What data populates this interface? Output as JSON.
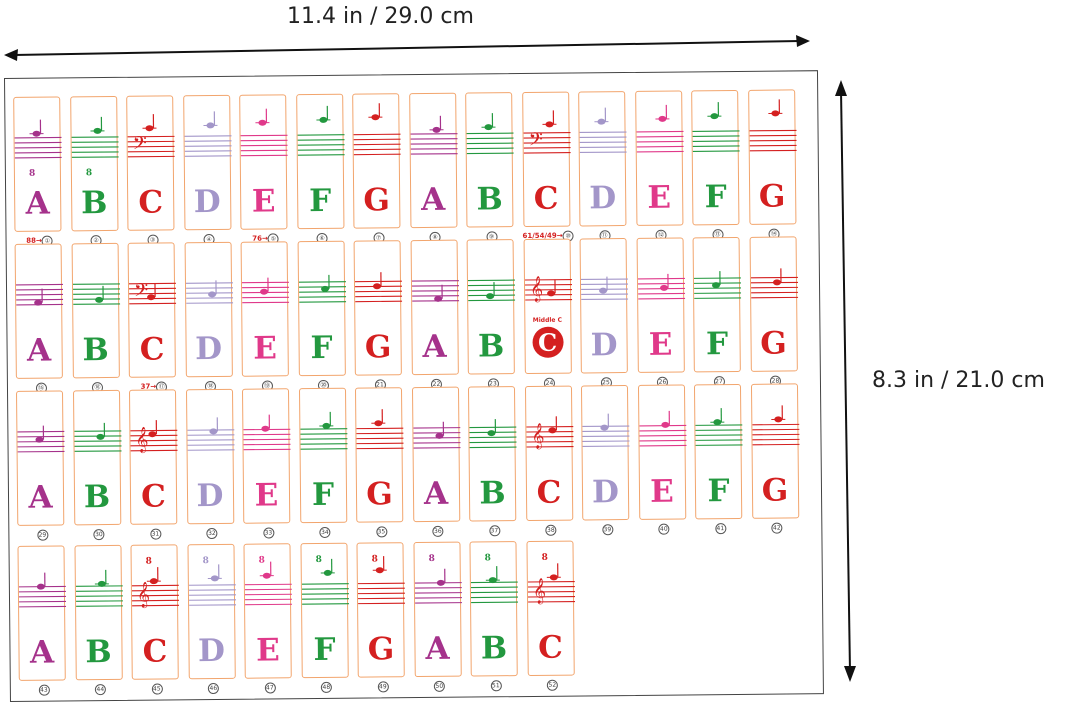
{
  "dimensions": {
    "width_label": "11.4 in / 29.0 cm",
    "height_label": "8.3 in / 21.0 cm"
  },
  "colors": {
    "A": "#a5328b",
    "B": "#23983f",
    "C": "#d42020",
    "D": "#a396c9",
    "E": "#e0398a",
    "F": "#23983f",
    "G": "#d42020",
    "card_border": "#f2a56d"
  },
  "clefs": {
    "bass": "𝄢",
    "treble": "𝄞",
    "ottava": "8"
  },
  "keys": [
    {
      "n": 1,
      "note": "A",
      "num_label": "①",
      "prefix": "88→"
    },
    {
      "n": 2,
      "note": "B",
      "num_label": "②"
    },
    {
      "n": 3,
      "note": "C",
      "num_label": "③"
    },
    {
      "n": 4,
      "note": "D",
      "num_label": "④"
    },
    {
      "n": 5,
      "note": "E",
      "num_label": "⑤",
      "prefix": "76→"
    },
    {
      "n": 6,
      "note": "F",
      "num_label": "⑥"
    },
    {
      "n": 7,
      "note": "G",
      "num_label": "⑦"
    },
    {
      "n": 8,
      "note": "A",
      "num_label": "⑧"
    },
    {
      "n": 9,
      "note": "B",
      "num_label": "⑨"
    },
    {
      "n": 10,
      "note": "C",
      "num_label": "⑩",
      "prefix": "61/54/49→"
    },
    {
      "n": 11,
      "note": "D",
      "num_label": "⑪"
    },
    {
      "n": 12,
      "note": "E",
      "num_label": "⑫"
    },
    {
      "n": 13,
      "note": "F",
      "num_label": "⑬"
    },
    {
      "n": 14,
      "note": "G",
      "num_label": "⑭"
    },
    {
      "n": 15,
      "note": "A",
      "num_label": "⑮"
    },
    {
      "n": 16,
      "note": "B",
      "num_label": "⑯"
    },
    {
      "n": 17,
      "note": "C",
      "num_label": "⑰",
      "prefix": "37→"
    },
    {
      "n": 18,
      "note": "D",
      "num_label": "⑱"
    },
    {
      "n": 19,
      "note": "E",
      "num_label": "⑲"
    },
    {
      "n": 20,
      "note": "F",
      "num_label": "⑳"
    },
    {
      "n": 21,
      "note": "G",
      "num_label": "21"
    },
    {
      "n": 22,
      "note": "A",
      "num_label": "22"
    },
    {
      "n": 23,
      "note": "B",
      "num_label": "23"
    },
    {
      "n": 24,
      "note": "C",
      "num_label": "24",
      "middle_c_label": "Middle C"
    },
    {
      "n": 25,
      "note": "D",
      "num_label": "25"
    },
    {
      "n": 26,
      "note": "E",
      "num_label": "26"
    },
    {
      "n": 27,
      "note": "F",
      "num_label": "27"
    },
    {
      "n": 28,
      "note": "G",
      "num_label": "28"
    },
    {
      "n": 29,
      "note": "A",
      "num_label": "29"
    },
    {
      "n": 30,
      "note": "B",
      "num_label": "30"
    },
    {
      "n": 31,
      "note": "C",
      "num_label": "31"
    },
    {
      "n": 32,
      "note": "D",
      "num_label": "32"
    },
    {
      "n": 33,
      "note": "E",
      "num_label": "33"
    },
    {
      "n": 34,
      "note": "F",
      "num_label": "34"
    },
    {
      "n": 35,
      "note": "G",
      "num_label": "35"
    },
    {
      "n": 36,
      "note": "A",
      "num_label": "36"
    },
    {
      "n": 37,
      "note": "B",
      "num_label": "37"
    },
    {
      "n": 38,
      "note": "C",
      "num_label": "38"
    },
    {
      "n": 39,
      "note": "D",
      "num_label": "39"
    },
    {
      "n": 40,
      "note": "E",
      "num_label": "40"
    },
    {
      "n": 41,
      "note": "F",
      "num_label": "41"
    },
    {
      "n": 42,
      "note": "G",
      "num_label": "42"
    },
    {
      "n": 43,
      "note": "A",
      "num_label": "43"
    },
    {
      "n": 44,
      "note": "B",
      "num_label": "44"
    },
    {
      "n": 45,
      "note": "C",
      "num_label": "45"
    },
    {
      "n": 46,
      "note": "D",
      "num_label": "46"
    },
    {
      "n": 47,
      "note": "E",
      "num_label": "47"
    },
    {
      "n": 48,
      "note": "F",
      "num_label": "48"
    },
    {
      "n": 49,
      "note": "G",
      "num_label": "49"
    },
    {
      "n": 50,
      "note": "A",
      "num_label": "50"
    },
    {
      "n": 51,
      "note": "B",
      "num_label": "51"
    },
    {
      "n": 52,
      "note": "C",
      "num_label": "52"
    }
  ]
}
